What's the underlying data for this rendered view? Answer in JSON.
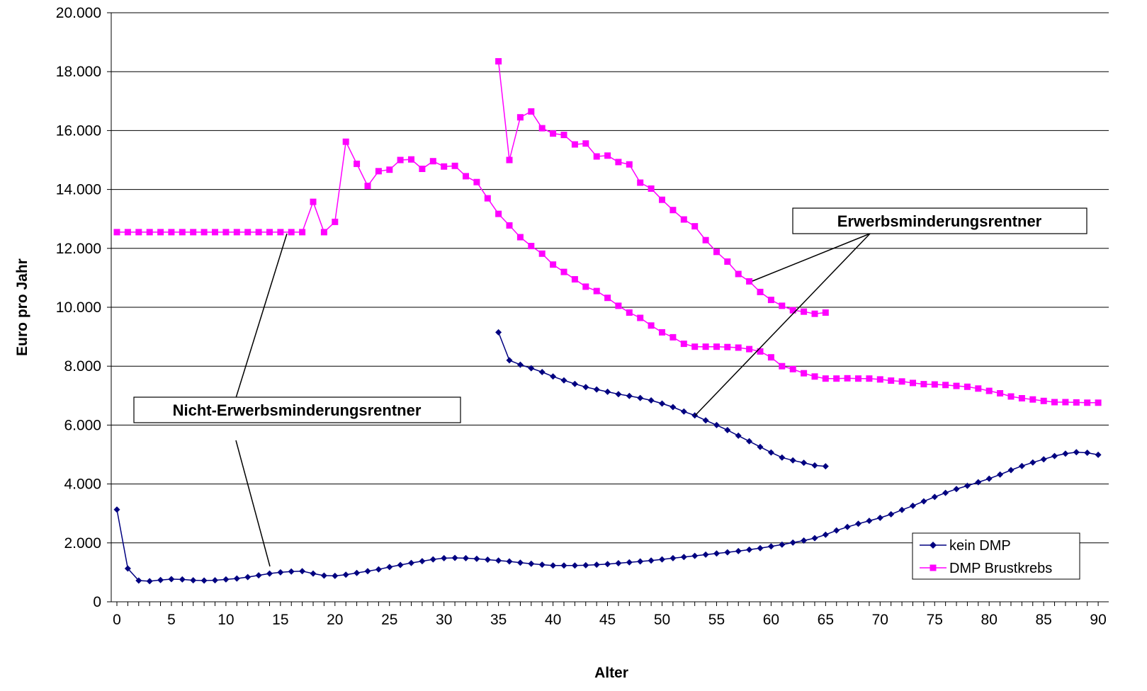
{
  "chart_data": {
    "type": "line",
    "xlabel": "Alter",
    "ylabel": "Euro pro Jahr",
    "xlim": [
      0,
      90
    ],
    "ylim": [
      0,
      20000
    ],
    "x_ticks": [
      "0",
      "5",
      "10",
      "15",
      "20",
      "25",
      "30",
      "35",
      "40",
      "45",
      "50",
      "55",
      "60",
      "65",
      "70",
      "75",
      "80",
      "85",
      "90"
    ],
    "y_ticks": [
      "0",
      "2.000",
      "4.000",
      "6.000",
      "8.000",
      "10.000",
      "12.000",
      "14.000",
      "16.000",
      "18.000",
      "20.000"
    ],
    "grid": "horizontal",
    "legend_position": "bottom-right",
    "colors": {
      "kein_dmp": "#000080",
      "dmp_brustkrebs": "#ff00ff"
    },
    "series": [
      {
        "name": "kein DMP",
        "group": "Nicht-Erwerbsminderungsrentner",
        "marker": "diamond",
        "color": "#000080",
        "x": [
          0,
          1,
          2,
          3,
          4,
          5,
          6,
          7,
          8,
          9,
          10,
          11,
          12,
          13,
          14,
          15,
          16,
          17,
          18,
          19,
          20,
          21,
          22,
          23,
          24,
          25,
          26,
          27,
          28,
          29,
          30,
          31,
          32,
          33,
          34,
          35,
          36,
          37,
          38,
          39,
          40,
          41,
          42,
          43,
          44,
          45,
          46,
          47,
          48,
          49,
          50,
          51,
          52,
          53,
          54,
          55,
          56,
          57,
          58,
          59,
          60,
          61,
          62,
          63,
          64,
          65,
          66,
          67,
          68,
          69,
          70,
          71,
          72,
          73,
          74,
          75,
          76,
          77,
          78,
          79,
          80,
          81,
          82,
          83,
          84,
          85,
          86,
          87,
          88,
          89,
          90
        ],
        "y": [
          3130,
          1130,
          720,
          700,
          740,
          770,
          760,
          730,
          720,
          730,
          760,
          790,
          840,
          900,
          960,
          1000,
          1030,
          1040,
          960,
          890,
          880,
          920,
          980,
          1040,
          1100,
          1180,
          1250,
          1320,
          1380,
          1440,
          1480,
          1490,
          1480,
          1460,
          1430,
          1400,
          1370,
          1330,
          1290,
          1260,
          1230,
          1230,
          1230,
          1240,
          1260,
          1280,
          1310,
          1340,
          1370,
          1400,
          1440,
          1480,
          1520,
          1560,
          1600,
          1640,
          1680,
          1720,
          1770,
          1820,
          1880,
          1940,
          2010,
          2080,
          2160,
          2280,
          2420,
          2540,
          2650,
          2750,
          2850,
          2970,
          3120,
          3260,
          3410,
          3560,
          3700,
          3830,
          3940,
          4060,
          4180,
          4320,
          4470,
          4610,
          4730,
          4840,
          4950,
          5030,
          5080,
          5060,
          4990
        ]
      },
      {
        "name": "DMP Brustkrebs",
        "group": "Nicht-Erwerbsminderungsrentner",
        "marker": "square",
        "color": "#ff00ff",
        "x": [
          0,
          1,
          2,
          3,
          4,
          5,
          6,
          7,
          8,
          9,
          10,
          11,
          12,
          13,
          14,
          15,
          16,
          17,
          18,
          19,
          20,
          21,
          22,
          23,
          24,
          25,
          26,
          27,
          28,
          29,
          30,
          31,
          32,
          33,
          34,
          35,
          36,
          37,
          38,
          39,
          40,
          41,
          42,
          43,
          44,
          45,
          46,
          47,
          48,
          49,
          50,
          51,
          52,
          53,
          54,
          55,
          56,
          57,
          58,
          59,
          60,
          61,
          62,
          63,
          64,
          65,
          66,
          67,
          68,
          69,
          70,
          71,
          72,
          73,
          74,
          75,
          76,
          77,
          78,
          79,
          80,
          81,
          82,
          83,
          84,
          85,
          86,
          87,
          88,
          89,
          90
        ],
        "y": [
          12550,
          12550,
          12550,
          12550,
          12550,
          12550,
          12550,
          12550,
          12550,
          12550,
          12550,
          12550,
          12550,
          12550,
          12550,
          12550,
          12550,
          12550,
          13580,
          12550,
          12900,
          15620,
          14870,
          14120,
          14620,
          14670,
          15000,
          15020,
          14700,
          14960,
          14780,
          14800,
          14450,
          14250,
          13700,
          13170,
          12780,
          12380,
          12080,
          11820,
          11450,
          11200,
          10950,
          10700,
          10550,
          10320,
          10050,
          9820,
          9640,
          9380,
          9150,
          8980,
          8760,
          8660,
          8660,
          8660,
          8650,
          8630,
          8580,
          8500,
          8300,
          8000,
          7900,
          7760,
          7650,
          7580,
          7580,
          7590,
          7580,
          7580,
          7550,
          7510,
          7480,
          7430,
          7390,
          7380,
          7360,
          7330,
          7300,
          7240,
          7160,
          7080,
          6970,
          6910,
          6870,
          6820,
          6780,
          6780,
          6770,
          6760,
          6760
        ]
      },
      {
        "name": "kein DMP",
        "group": "Erwerbsminderungsrentner",
        "marker": "diamond",
        "color": "#000080",
        "x": [
          35,
          36,
          37,
          38,
          39,
          40,
          41,
          42,
          43,
          44,
          45,
          46,
          47,
          48,
          49,
          50,
          51,
          52,
          53,
          54,
          55,
          56,
          57,
          58,
          59,
          60,
          61,
          62,
          63,
          64,
          65
        ],
        "y": [
          9150,
          8200,
          8050,
          7930,
          7800,
          7650,
          7520,
          7400,
          7290,
          7210,
          7130,
          7050,
          6990,
          6920,
          6840,
          6730,
          6610,
          6460,
          6330,
          6160,
          6000,
          5830,
          5640,
          5450,
          5260,
          5070,
          4900,
          4800,
          4720,
          4630,
          4600
        ]
      },
      {
        "name": "DMP Brustkrebs",
        "group": "Erwerbsminderungsrentner",
        "marker": "square",
        "color": "#ff00ff",
        "x": [
          35,
          36,
          37,
          38,
          39,
          40,
          41,
          42,
          43,
          44,
          45,
          46,
          47,
          48,
          49,
          50,
          51,
          52,
          53,
          54,
          55,
          56,
          57,
          58,
          59,
          60,
          61,
          62,
          63,
          64,
          65
        ],
        "y": [
          18350,
          15000,
          16450,
          16650,
          16080,
          15900,
          15850,
          15530,
          15560,
          15120,
          15150,
          14930,
          14850,
          14230,
          14030,
          13650,
          13300,
          12980,
          12750,
          12280,
          11880,
          11550,
          11130,
          10880,
          10520,
          10250,
          10050,
          9900,
          9850,
          9780,
          9820
        ]
      }
    ],
    "legend": [
      "kein DMP",
      "DMP Brustkrebs"
    ],
    "annotations": [
      {
        "text": "Erwerbsminderungsrentner"
      },
      {
        "text": "Nicht-Erwerbsminderungsrentner"
      }
    ]
  }
}
